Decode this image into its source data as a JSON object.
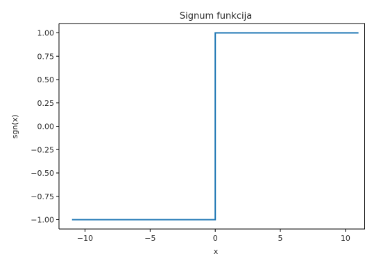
{
  "chart_data": {
    "type": "line",
    "title": "Signum funkcija",
    "xlabel": "x",
    "ylabel": "sgn(x)",
    "xlim": [
      -12,
      11.5
    ],
    "ylim": [
      -1.1,
      1.1
    ],
    "x_ticks": [
      -10,
      -5,
      0,
      5,
      10
    ],
    "x_tick_labels": [
      "−10",
      "−5",
      "0",
      "5",
      "10"
    ],
    "y_ticks": [
      -1.0,
      -0.75,
      -0.5,
      -0.25,
      0.0,
      0.25,
      0.5,
      0.75,
      1.0
    ],
    "y_tick_labels": [
      "−1.00",
      "−0.75",
      "−0.50",
      "−0.25",
      "0.00",
      "0.25",
      "0.50",
      "0.75",
      "1.00"
    ],
    "grid": false,
    "series": [
      {
        "color": "#1f77b4",
        "x": [
          -11,
          0,
          0,
          11
        ],
        "y": [
          -1,
          -1,
          1,
          1
        ]
      }
    ]
  }
}
